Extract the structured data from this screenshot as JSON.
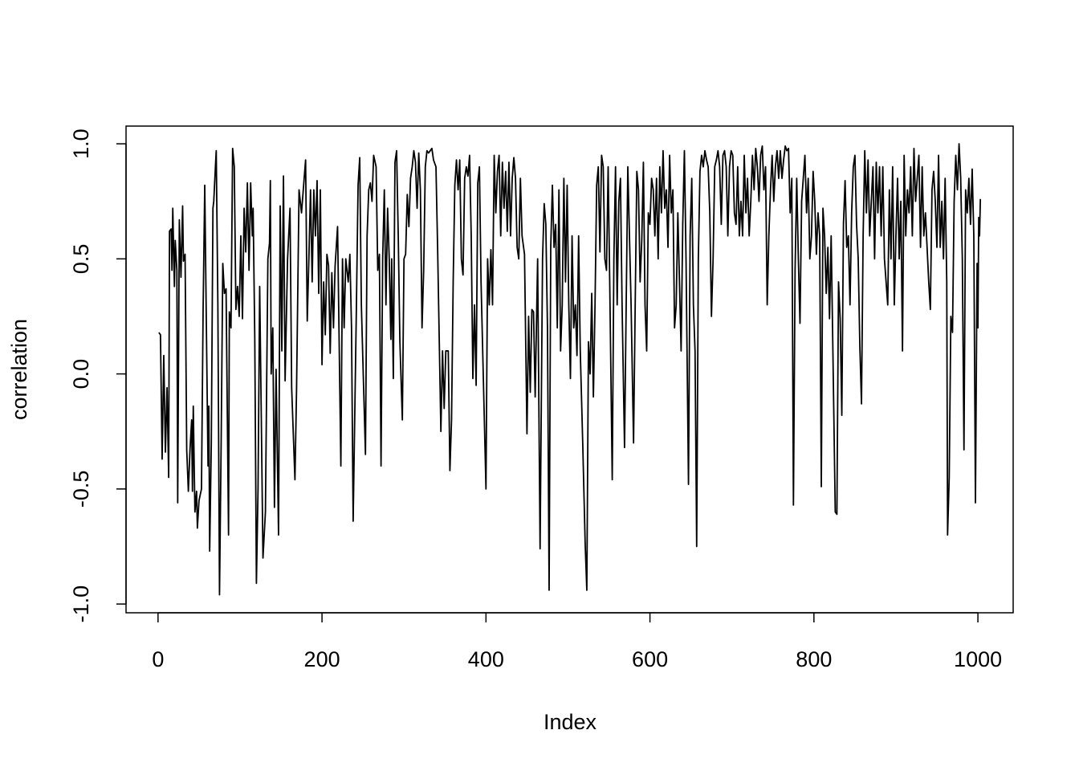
{
  "chart_data": {
    "type": "line",
    "x_label": "Index",
    "y_label": "correlation",
    "color": "#000000",
    "x": [
      1,
      3,
      5,
      7,
      9,
      11,
      13,
      14,
      16,
      17,
      18,
      20,
      21,
      23,
      24,
      26,
      28,
      30,
      31,
      33,
      35,
      37,
      39,
      41,
      42,
      43,
      45,
      47,
      48,
      50,
      53,
      55,
      57,
      59,
      61,
      62,
      63,
      65,
      67,
      68,
      70,
      71,
      73,
      75,
      77,
      79,
      81,
      83,
      86,
      87,
      89,
      91,
      93,
      95,
      97,
      99,
      101,
      103,
      105,
      107,
      109,
      111,
      113,
      115,
      116,
      118,
      120,
      122,
      124,
      126,
      128,
      131,
      134,
      136,
      137,
      138,
      140,
      142,
      144,
      147,
      149,
      151,
      153,
      155,
      158,
      161,
      163,
      167,
      169,
      172,
      175,
      180,
      182,
      184,
      186,
      188,
      190,
      192,
      194,
      196,
      198,
      200,
      202,
      204,
      206,
      208,
      210,
      212,
      214,
      216,
      219,
      223,
      225,
      227,
      229,
      232,
      234,
      236,
      238,
      240,
      242,
      244,
      246,
      248,
      253,
      255,
      257,
      259,
      261,
      263,
      266,
      268,
      270,
      272,
      274,
      276,
      278,
      280,
      282,
      284,
      285,
      287,
      289,
      291,
      293,
      295,
      298,
      300,
      302,
      304,
      306,
      308,
      310,
      312,
      314,
      316,
      318,
      320,
      322,
      324,
      326,
      328,
      330,
      334,
      336,
      339,
      341,
      343,
      345,
      347,
      349,
      351,
      354,
      356,
      358,
      360,
      362,
      364,
      366,
      368,
      370,
      372,
      374,
      376,
      378,
      380,
      382,
      384,
      386,
      388,
      390,
      392,
      394,
      400,
      402,
      404,
      406,
      408,
      410,
      412,
      414,
      416,
      418,
      420,
      422,
      424,
      426,
      428,
      430,
      432,
      434,
      436,
      438,
      440,
      442,
      444,
      447,
      450,
      452,
      454,
      456,
      458,
      460,
      463,
      466,
      469,
      471,
      473,
      475,
      477,
      479,
      481,
      483,
      485,
      487,
      489,
      491,
      493,
      495,
      497,
      499,
      501,
      503,
      505,
      507,
      509,
      511,
      513,
      515,
      518,
      521,
      523,
      525,
      527,
      529,
      531,
      533,
      535,
      537,
      539,
      541,
      543,
      545,
      547,
      549,
      551,
      554,
      556,
      558,
      560,
      562,
      564,
      566,
      569,
      571,
      573,
      575,
      577,
      580,
      582,
      584,
      586,
      588,
      590,
      592,
      594,
      596,
      598,
      600,
      602,
      604,
      606,
      608,
      610,
      612,
      614,
      616,
      618,
      620,
      622,
      624,
      626,
      628,
      630,
      632,
      634,
      636,
      638,
      640,
      642,
      644,
      647,
      649,
      651,
      653,
      655,
      657,
      659,
      661,
      663,
      665,
      667,
      669,
      671,
      673,
      675,
      677,
      679,
      681,
      683,
      685,
      687,
      689,
      691,
      693,
      695,
      697,
      699,
      701,
      703,
      705,
      707,
      709,
      711,
      713,
      715,
      717,
      719,
      721,
      723,
      725,
      727,
      729,
      731,
      733,
      735,
      737,
      739,
      741,
      743,
      745,
      747,
      749,
      751,
      753,
      755,
      757,
      759,
      761,
      763,
      765,
      767,
      769,
      771,
      773,
      775,
      777,
      779,
      781,
      783,
      785,
      787,
      789,
      791,
      793,
      795,
      797,
      799,
      801,
      803,
      805,
      807,
      809,
      811,
      813,
      815,
      817,
      819,
      821,
      823,
      826,
      828,
      830,
      832,
      834,
      836,
      838,
      840,
      842,
      844,
      846,
      848,
      850,
      852,
      854,
      856,
      858,
      860,
      862,
      864,
      866,
      868,
      870,
      872,
      874,
      876,
      878,
      880,
      882,
      884,
      886,
      888,
      890,
      892,
      894,
      896,
      898,
      900,
      902,
      904,
      906,
      908,
      910,
      912,
      914,
      916,
      918,
      920,
      922,
      924,
      926,
      928,
      930,
      932,
      934,
      936,
      938,
      940,
      942,
      944,
      946,
      948,
      950,
      952,
      954,
      956,
      958,
      960,
      962,
      963,
      965,
      967,
      969,
      971,
      973,
      975,
      977,
      979,
      981,
      983,
      985,
      987,
      989,
      991,
      993,
      995,
      997,
      999,
      1000,
      1001,
      1002,
      1003
    ],
    "values": [
      0.18,
      0.17,
      -0.37,
      0.08,
      -0.34,
      -0.06,
      -0.45,
      0.62,
      0.63,
      0.45,
      0.72,
      0.38,
      0.58,
      0.45,
      -0.56,
      0.67,
      0.42,
      0.73,
      0.49,
      0.52,
      -0.33,
      -0.51,
      -0.33,
      -0.2,
      -0.51,
      -0.14,
      -0.6,
      -0.51,
      -0.67,
      -0.55,
      -0.5,
      0.28,
      0.82,
      0.2,
      -0.4,
      -0.14,
      -0.77,
      -0.3,
      0.72,
      0.75,
      0.9,
      0.97,
      0.3,
      -0.96,
      -0.3,
      0.48,
      0.35,
      0.37,
      -0.7,
      0.27,
      0.2,
      0.98,
      0.9,
      0.28,
      0.38,
      0.25,
      0.6,
      0.24,
      0.72,
      0.53,
      0.83,
      0.45,
      0.83,
      0.6,
      0.72,
      0.16,
      -0.91,
      -0.5,
      0.38,
      -0.2,
      -0.8,
      -0.6,
      0.5,
      0.57,
      0.84,
      0,
      0.2,
      -0.58,
      0.02,
      -0.7,
      0.73,
      0.1,
      0.86,
      -0.03,
      0.5,
      0.72,
      -0.06,
      -0.46,
      -0.06,
      0.8,
      0.7,
      0.93,
      0.23,
      0.5,
      0.8,
      0.4,
      0.8,
      0.6,
      0.84,
      0.35,
      0.8,
      0.04,
      0.4,
      0.17,
      0.52,
      0.47,
      0.09,
      0.44,
      0.2,
      0.47,
      0.64,
      -0.4,
      0.5,
      0.2,
      0.5,
      0.4,
      0.52,
      0.2,
      -0.64,
      -0.17,
      0.3,
      0.82,
      0.94,
      0.3,
      -0.35,
      0.6,
      0.8,
      0.83,
      0.75,
      0.95,
      0.9,
      0.45,
      0.52,
      -0.4,
      0.5,
      0.8,
      0.3,
      0.72,
      0.5,
      0.15,
      0.5,
      -0.02,
      0.92,
      0.97,
      0.6,
      0.14,
      -0.2,
      0.5,
      0.52,
      0.78,
      0.64,
      0.85,
      0.9,
      0.97,
      0.92,
      0.72,
      0.96,
      0.8,
      0.2,
      0.45,
      0.9,
      0.97,
      0.96,
      0.98,
      0.93,
      0.9,
      0.55,
      0.15,
      -0.25,
      0.1,
      -0.15,
      0.1,
      0.1,
      -0.42,
      -0.2,
      0.4,
      0.82,
      0.93,
      0.8,
      0.93,
      0.5,
      0.43,
      0.85,
      0.9,
      0.86,
      0.95,
      0.6,
      -0.02,
      0.3,
      -0.05,
      0.83,
      0.9,
      0.4,
      -0.5,
      0.5,
      0.3,
      0.54,
      0.3,
      0.95,
      0.7,
      0.88,
      0.95,
      0.6,
      0.92,
      0.72,
      0.88,
      0.62,
      0.92,
      0.6,
      0.85,
      0.94,
      0.85,
      0.55,
      0.5,
      0.85,
      0.6,
      0.52,
      -0.26,
      0.25,
      -0.08,
      0.28,
      0.27,
      -0.1,
      0.5,
      -0.76,
      0.5,
      0.74,
      0.65,
      0.2,
      -0.94,
      0.55,
      0.82,
      0.55,
      0.65,
      0.2,
      0.8,
      0.1,
      0.3,
      0.85,
      0.4,
      0.82,
      0.3,
      -0.02,
      0.6,
      0.2,
      0.3,
      0.08,
      0.6,
      0.1,
      -0.3,
      -0.74,
      -0.94,
      0.14,
      0,
      0.35,
      -0.1,
      0.3,
      0.82,
      0.9,
      0.53,
      0.95,
      0.9,
      0.5,
      0.45,
      0.9,
      0.38,
      -0.46,
      0.5,
      0.9,
      0.3,
      0.75,
      0.85,
      0.3,
      -0.32,
      0.3,
      0.9,
      0.6,
      0.3,
      -0.3,
      0.3,
      0.88,
      0.8,
      0.4,
      0.58,
      0.92,
      0.3,
      0.1,
      0.7,
      0.65,
      0.85,
      0.8,
      0.6,
      0.85,
      0.5,
      0.9,
      0.7,
      0.97,
      0.72,
      0.8,
      0.55,
      0.95,
      0.7,
      0.8,
      0.2,
      0.3,
      0.7,
      0.4,
      0.1,
      0.65,
      0.97,
      0.5,
      -0.48,
      0.6,
      0.85,
      0.3,
      0.1,
      -0.75,
      0.5,
      0.88,
      0.95,
      0.9,
      0.97,
      0.93,
      0.9,
      0.7,
      0.25,
      0.5,
      0.9,
      0.93,
      0.97,
      0.9,
      0.65,
      0.95,
      0.97,
      0.9,
      0.6,
      0.9,
      0.97,
      0.95,
      0.7,
      0.65,
      0.9,
      0.6,
      0.75,
      0.6,
      0.95,
      0.7,
      0.85,
      0.6,
      0.75,
      0.95,
      0.8,
      0.98,
      0.9,
      0.75,
      0.95,
      0.99,
      0.8,
      0.9,
      0.3,
      0.6,
      0.8,
      0.95,
      0.75,
      0.9,
      0.97,
      0.85,
      0.97,
      0.85,
      0.93,
      0.99,
      0.97,
      0.98,
      0.7,
      0.85,
      -0.57,
      0.45,
      0.85,
      0.5,
      0.22,
      0.75,
      0.85,
      0.95,
      0.7,
      0.85,
      0.5,
      0.6,
      0.88,
      0.75,
      0.52,
      0.7,
      0.6,
      -0.49,
      0.72,
      0.6,
      0.35,
      0.55,
      0.24,
      0.6,
      0.13,
      -0.6,
      -0.61,
      0.4,
      0.24,
      -0.18,
      0.65,
      0.84,
      0.55,
      0.6,
      0.3,
      0.7,
      0.9,
      0.95,
      0.65,
      0.5,
      0.12,
      -0.13,
      0.6,
      0.97,
      0.7,
      0.93,
      0.6,
      0.75,
      0.9,
      0.5,
      0.92,
      0.7,
      0.9,
      0.6,
      0.9,
      0.5,
      0.4,
      0.3,
      0.8,
      0.5,
      0.9,
      0.3,
      0.6,
      0.85,
      0.5,
      0.75,
      0.1,
      0.95,
      0.6,
      0.8,
      0.7,
      0.9,
      0.6,
      0.98,
      0.75,
      0.85,
      0.95,
      0.55,
      0.9,
      0.6,
      0.7,
      0.55,
      0.4,
      0.28,
      0.8,
      0.88,
      0.75,
      0.55,
      0.95,
      0.55,
      0.75,
      0.5,
      0.85,
      0.4,
      -0.7,
      -0.45,
      0.25,
      0.18,
      0.75,
      0.95,
      0.8,
      1.0,
      0.85,
      0.5,
      -0.33,
      0.8,
      0.7,
      0.85,
      0.65,
      0.89,
      0.6,
      -0.56,
      0.48,
      0.2,
      0.68,
      0.6,
      0.76
    ],
    "xlim": [
      -39,
      1043
    ],
    "ylim": [
      -1.038,
      1.077
    ],
    "xticks": [
      0,
      200,
      400,
      600,
      800,
      1000
    ],
    "yticks": [
      {
        "value": -1,
        "label": "-1.0"
      },
      -0.5,
      {
        "value": 0,
        "label": "0.0"
      },
      0.5,
      {
        "value": 1,
        "label": "1.0"
      }
    ]
  }
}
